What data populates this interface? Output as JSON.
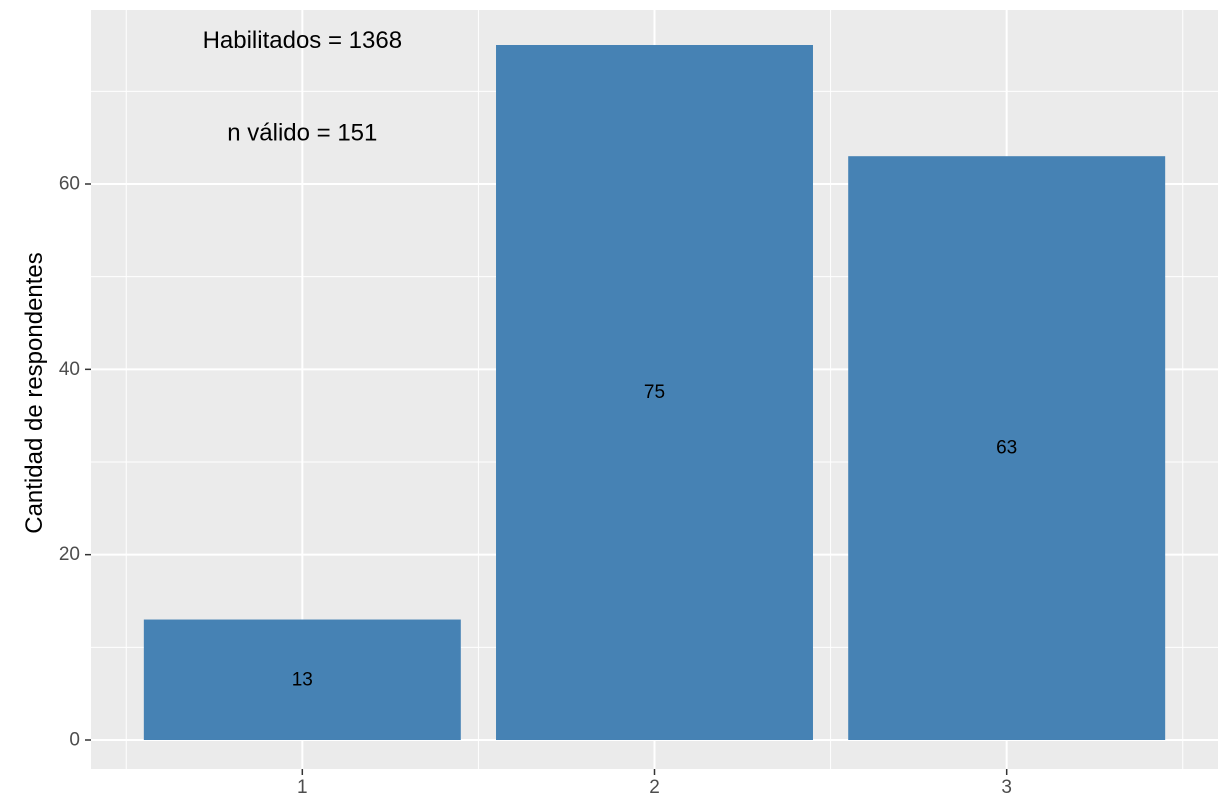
{
  "chart_data": {
    "type": "bar",
    "categories": [
      "1",
      "2",
      "3"
    ],
    "values": [
      13,
      75,
      63
    ],
    "bar_labels": [
      "13",
      "75",
      "63"
    ],
    "ylabel": "Cantidad de respondentes",
    "xlabel": "",
    "ylim": [
      0,
      78.75
    ],
    "y_ticks": [
      0,
      20,
      40,
      60
    ],
    "y_tick_labels": [
      "0",
      "20",
      "40",
      "60"
    ],
    "grid": true,
    "annotations": [
      "Habilitados =  1368",
      "n válido = 151"
    ],
    "colors": {
      "bar": "#4682b4",
      "panel": "#ebebeb",
      "grid": "#ffffff",
      "tick_text": "#4d4d4d",
      "tick_mark": "#333333"
    }
  }
}
